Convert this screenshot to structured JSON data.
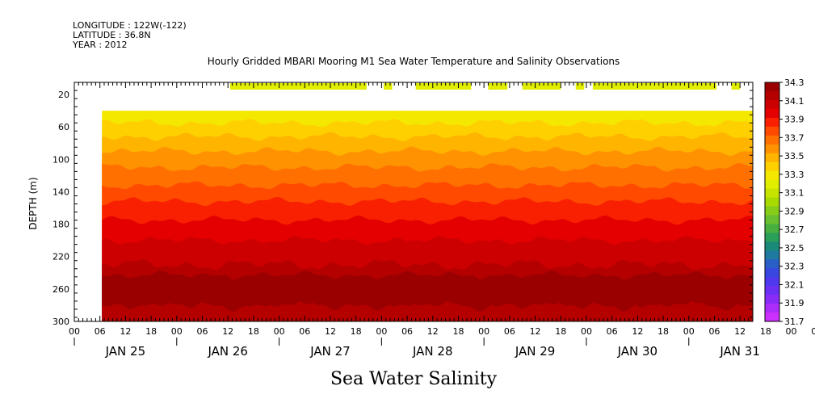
{
  "header": {
    "longitude": "LONGITUDE : 122W(-122)",
    "latitude": "LATITUDE : 36.8N",
    "year": "YEAR : 2012"
  },
  "chart_data": {
    "type": "heatmap",
    "title": "Hourly Gridded MBARI Mooring M1 Sea Water Temperature and Salinity Observations",
    "xlabel": "Sea Water Salinity",
    "ylabel": "DEPTH (m)",
    "ylim": [
      300,
      5
    ],
    "y_ticks": [
      20,
      60,
      100,
      140,
      180,
      220,
      260,
      300
    ],
    "hour_tick_labels": [
      "00",
      "06",
      "12",
      "18",
      "00",
      "06",
      "12",
      "18",
      "00",
      "06",
      "12",
      "18",
      "00",
      "06",
      "12",
      "18",
      "00",
      "06",
      "12",
      "18",
      "00",
      "06",
      "12",
      "18",
      "00",
      "06",
      "12",
      "18",
      "00",
      "06",
      "12"
    ],
    "day_labels": [
      {
        "label": "JAN 25",
        "hour": 12
      },
      {
        "label": "JAN 26",
        "hour": 36
      },
      {
        "label": "JAN 27",
        "hour": 60
      },
      {
        "label": "JAN 28",
        "hour": 84
      },
      {
        "label": "JAN 29",
        "hour": 108
      },
      {
        "label": "JAN 30",
        "hour": 132
      },
      {
        "label": "JAN 31",
        "hour": 156
      }
    ],
    "x_range_hours": [
      0,
      159
    ],
    "data_start_hour": 6.5,
    "colorbar": {
      "levels": [
        34.3,
        34.2,
        34.1,
        34.0,
        33.9,
        33.8,
        33.7,
        33.6,
        33.5,
        33.4,
        33.3,
        33.2,
        33.1,
        33.0,
        32.9,
        32.8,
        32.7,
        32.6,
        32.5,
        32.4,
        32.3,
        32.2,
        32.1,
        32.0,
        31.9,
        31.8,
        31.7
      ],
      "labels": [
        "34.3",
        "34.1",
        "33.9",
        "33.7",
        "33.5",
        "33.3",
        "33.1",
        "32.9",
        "32.7",
        "32.5",
        "32.3",
        "32.1",
        "31.9",
        "31.7"
      ],
      "colors": [
        "#9b0000",
        "#b50000",
        "#cc0000",
        "#e40000",
        "#f82000",
        "#ff4a00",
        "#ff7000",
        "#ff9200",
        "#ffb400",
        "#ffd000",
        "#f4e800",
        "#e2ee00",
        "#c6e400",
        "#a8da00",
        "#88cc1a",
        "#68c030",
        "#48b040",
        "#2a9f5a",
        "#1a8a78",
        "#1f7aa0",
        "#2a5fc8",
        "#3a46e0",
        "#5038ee",
        "#6c30f4",
        "#8a2cf8",
        "#ac2cfa",
        "#cc30fc"
      ]
    },
    "surface_band": {
      "depth": 10,
      "value": 33.2,
      "segments_hours": [
        [
          36.5,
          68.5
        ],
        [
          72.5,
          74.5
        ],
        [
          80,
          93
        ],
        [
          97,
          101.5
        ],
        [
          105,
          114
        ],
        [
          117.5,
          119.5
        ],
        [
          121.5,
          150.5
        ],
        [
          154,
          156
        ]
      ]
    },
    "profile": [
      {
        "depth": 40,
        "value": 33.3
      },
      {
        "depth": 55,
        "value": 33.4
      },
      {
        "depth": 72,
        "value": 33.5
      },
      {
        "depth": 90,
        "value": 33.6
      },
      {
        "depth": 110,
        "value": 33.7
      },
      {
        "depth": 132,
        "value": 33.8
      },
      {
        "depth": 152,
        "value": 33.9
      },
      {
        "depth": 175,
        "value": 34.0
      },
      {
        "depth": 200,
        "value": 34.1
      },
      {
        "depth": 230,
        "value": 34.2
      },
      {
        "depth": 250,
        "value": 34.3
      },
      {
        "depth": 280,
        "value": 34.2
      },
      {
        "depth": 300,
        "value": 34.2
      }
    ]
  }
}
